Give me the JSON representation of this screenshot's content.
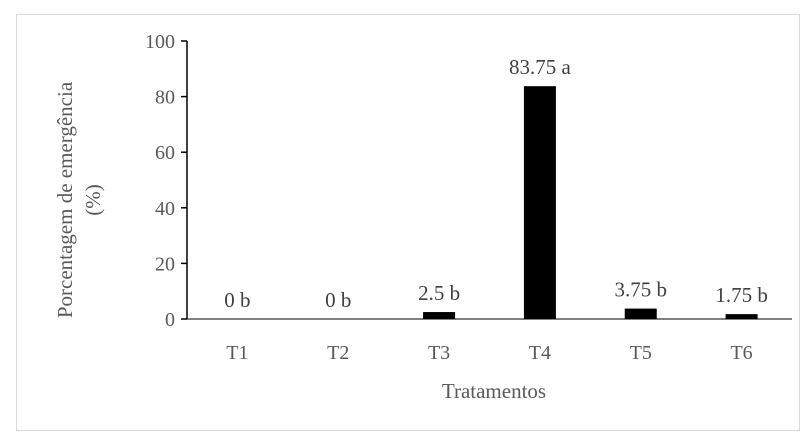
{
  "chart_data": {
    "type": "bar",
    "categories": [
      "T1",
      "T2",
      "T3",
      "T4",
      "T5",
      "T6"
    ],
    "values": [
      0,
      0,
      2.5,
      83.75,
      3.75,
      1.75
    ],
    "data_labels": [
      "0 b",
      "0 b",
      "2.5 b",
      "83.75 a",
      "3.75 b",
      "1.75 b"
    ],
    "xlabel": "Tratamentos",
    "ylabel_lines": [
      "Porcentagem de emergência",
      "(%)"
    ],
    "ylim": [
      0,
      100
    ],
    "yticks": [
      0,
      20,
      40,
      60,
      80,
      100
    ],
    "ytick_labels": [
      "0",
      "20",
      "40",
      "60",
      "80",
      "100"
    ],
    "grid": false,
    "legend": "none",
    "bar_color": "#000000",
    "axis_color": "#000000",
    "text_color": "#595959"
  }
}
